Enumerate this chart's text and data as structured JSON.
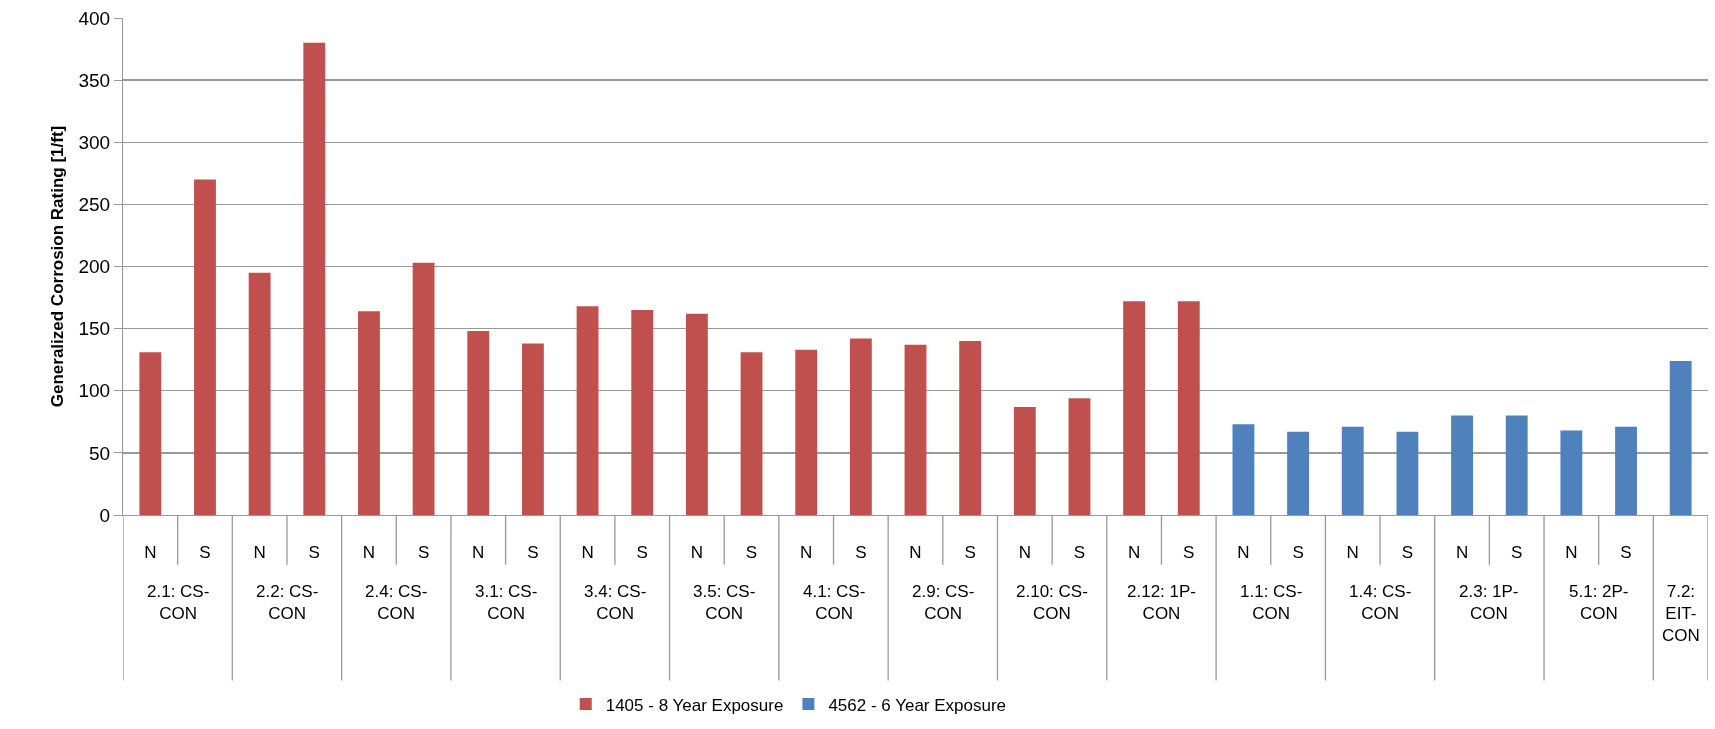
{
  "chart_data": {
    "type": "bar",
    "ylabel": "Generalized Corrosion Rating [1/ft]",
    "categories": [
      "N",
      "S",
      "N",
      "S",
      "N",
      "S",
      "N",
      "S",
      "N",
      "S",
      "N",
      "S",
      "N",
      "S",
      "N",
      "S",
      "N",
      "S",
      "N",
      "S",
      "N",
      "S",
      "N",
      "S",
      "N",
      "S",
      "N",
      "S",
      null
    ],
    "series": [
      {
        "name": "1405 - 8 Year Exposure",
        "color": "#c0504d",
        "values": [
          131,
          270,
          195,
          380,
          164,
          203,
          148,
          138,
          168,
          165,
          162,
          131,
          133,
          142,
          137,
          140,
          87,
          94,
          172,
          172,
          null,
          null,
          null,
          null,
          null,
          null,
          null,
          null,
          null
        ]
      },
      {
        "name": "4562 - 6 Year Exposure",
        "color": "#4f81bd",
        "values": [
          null,
          null,
          null,
          null,
          null,
          null,
          null,
          null,
          null,
          null,
          null,
          null,
          null,
          null,
          null,
          null,
          null,
          null,
          null,
          null,
          73,
          67,
          71,
          67,
          80,
          80,
          68,
          71,
          124
        ]
      }
    ],
    "annotations": [
      "2.1: CS-CON",
      "2.2: CS-CON",
      "2.4: CS-CON",
      "3.1: CS-CON",
      "3.4: CS-CON",
      "3.5: CS-CON",
      "4.1: CS-CON",
      "2.9: CS-CON",
      "2.10: CS-CON",
      "2.12: 1P-CON",
      "1.1: CS-CON",
      "1.4: CS-CON",
      "2.3: 1P-CON",
      "5.1: 2P-CON",
      "7.2: EIT-CON"
    ],
    "ylim": [
      0,
      400
    ],
    "yticks": [
      0,
      50,
      100,
      150,
      200,
      250,
      300,
      350,
      400
    ],
    "grid": "y",
    "legend": "bottom"
  }
}
